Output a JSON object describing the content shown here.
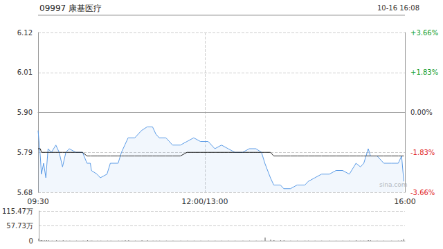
{
  "chart_data": [
    {
      "type": "line",
      "title": "09997 康基医疗",
      "subtitle": "10-16 16:08",
      "watermark": "sina.com",
      "x": [
        0,
        2,
        3,
        5,
        7,
        9,
        12,
        16,
        19,
        22,
        25,
        28,
        34,
        40,
        44,
        47,
        48,
        53,
        56,
        62,
        65,
        72,
        75,
        78,
        81,
        87,
        93,
        98,
        103,
        106,
        109,
        115,
        121,
        128,
        134,
        140,
        146,
        153,
        159,
        165,
        171,
        177,
        184,
        190,
        196,
        201,
        204,
        209,
        212,
        218,
        221,
        227,
        233,
        240,
        243,
        249,
        255,
        262,
        268,
        274,
        280,
        286,
        290,
        293,
        297,
        299,
        305,
        311,
        318,
        324,
        327,
        329
      ],
      "series": [
        {
          "color": "#5b9be6",
          "values": [
            5.85,
            5.78,
            5.73,
            5.76,
            5.72,
            5.8,
            5.79,
            5.81,
            5.79,
            5.75,
            5.79,
            5.8,
            5.79,
            5.79,
            5.76,
            5.76,
            5.74,
            5.73,
            5.72,
            5.73,
            5.76,
            5.76,
            5.79,
            5.81,
            5.83,
            5.83,
            5.85,
            5.86,
            5.86,
            5.84,
            5.83,
            5.83,
            5.81,
            5.81,
            5.82,
            5.83,
            5.82,
            5.82,
            5.8,
            5.81,
            5.8,
            5.79,
            5.79,
            5.8,
            5.8,
            5.79,
            5.76,
            5.72,
            5.7,
            5.7,
            5.69,
            5.69,
            5.7,
            5.7,
            5.71,
            5.72,
            5.73,
            5.73,
            5.74,
            5.74,
            5.73,
            5.76,
            5.75,
            5.76,
            5.8,
            5.78,
            5.78,
            5.76,
            5.76,
            5.76,
            5.78,
            5.71
          ]
        },
        {
          "color": "#222222",
          "values": [
            5.8,
            5.8,
            5.79,
            5.79,
            5.79,
            5.79,
            5.79,
            5.79,
            5.79,
            5.79,
            5.79,
            5.79,
            5.79,
            5.79,
            5.78,
            5.78,
            5.78,
            5.78,
            5.78,
            5.78,
            5.78,
            5.78,
            5.78,
            5.78,
            5.78,
            5.78,
            5.78,
            5.78,
            5.78,
            5.78,
            5.78,
            5.78,
            5.78,
            5.78,
            5.79,
            5.79,
            5.79,
            5.79,
            5.79,
            5.79,
            5.79,
            5.79,
            5.79,
            5.79,
            5.79,
            5.79,
            5.79,
            5.79,
            5.78,
            5.78,
            5.78,
            5.78,
            5.78,
            5.78,
            5.78,
            5.78,
            5.78,
            5.78,
            5.78,
            5.78,
            5.78,
            5.78,
            5.78,
            5.78,
            5.78,
            5.78,
            5.78,
            5.78,
            5.78,
            5.78,
            5.78,
            5.78
          ]
        }
      ],
      "xlim": [
        0,
        330
      ],
      "xticks": [
        {
          "value": 0,
          "label": "09:30"
        },
        {
          "value": 150,
          "label": "12:00/13:00"
        },
        {
          "value": 330,
          "label": "16:00"
        }
      ],
      "ylim": [
        5.68,
        6.12
      ],
      "yticks": [
        6.12,
        6.01,
        {
          "value": 5.9,
          "label": "5.90"
        },
        5.79,
        5.68
      ],
      "y2lim": [
        -3.66,
        3.66
      ],
      "y2ticks": [
        {
          "value": 3.66,
          "label": "+3.66%"
        },
        {
          "value": 1.83,
          "label": "+1.83%"
        },
        {
          "value": 0,
          "label": "0.00%"
        },
        {
          "value": -1.83,
          "label": "-1.83%"
        },
        {
          "value": -3.66,
          "label": "-3.66%"
        }
      ],
      "grid": true
    },
    {
      "type": "bar",
      "x": [
        0,
        2,
        3,
        5,
        7,
        9,
        12,
        16,
        19,
        22,
        25,
        28,
        34,
        40,
        44,
        47,
        48,
        53,
        56,
        62,
        65,
        72,
        75,
        78,
        81,
        87,
        93,
        98,
        103,
        106,
        109,
        115,
        121,
        128,
        134,
        140,
        146,
        153,
        159,
        165,
        171,
        177,
        184,
        190,
        196,
        201,
        204,
        209,
        212,
        218,
        221,
        227,
        233,
        240,
        243,
        249,
        255,
        262,
        268,
        274,
        280,
        286,
        290,
        293,
        297,
        299,
        305,
        311,
        318,
        324,
        327,
        329
      ],
      "values": [
        8,
        3,
        2,
        2,
        3,
        2,
        1,
        2,
        1,
        2,
        1,
        1,
        1,
        1,
        2,
        1,
        1,
        1,
        1,
        1,
        1,
        1,
        1,
        2,
        2,
        1,
        2,
        2,
        1,
        1,
        1,
        1,
        1,
        1,
        1,
        1,
        1,
        1,
        1,
        1,
        1,
        1,
        1,
        1,
        1,
        1,
        12,
        4,
        3,
        2,
        2,
        1,
        1,
        1,
        1,
        1,
        1,
        1,
        1,
        1,
        1,
        2,
        1,
        1,
        3,
        2,
        1,
        1,
        1,
        1,
        2,
        6
      ],
      "color": "#555555",
      "xlim": [
        0,
        330
      ],
      "ylim": [
        0,
        115.47
      ],
      "yticks": [
        {
          "value": 115.47,
          "label": "115.47万"
        },
        {
          "value": 57.73,
          "label": "57.73万"
        },
        0
      ],
      "grid": true,
      "tick_labels": "y"
    }
  ]
}
